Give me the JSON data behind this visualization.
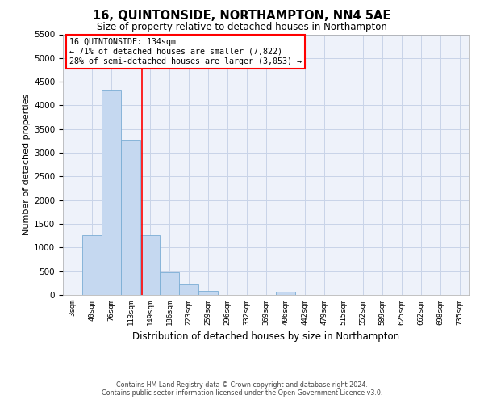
{
  "title": "16, QUINTONSIDE, NORTHAMPTON, NN4 5AE",
  "subtitle": "Size of property relative to detached houses in Northampton",
  "xlabel": "Distribution of detached houses by size in Northampton",
  "ylabel": "Number of detached properties",
  "bar_color": "#c5d8f0",
  "bar_edge_color": "#7aadd4",
  "background_color": "#eef2fa",
  "grid_color": "#c8d4e8",
  "categories": [
    "3sqm",
    "40sqm",
    "76sqm",
    "113sqm",
    "149sqm",
    "186sqm",
    "223sqm",
    "259sqm",
    "296sqm",
    "332sqm",
    "369sqm",
    "406sqm",
    "442sqm",
    "479sqm",
    "515sqm",
    "552sqm",
    "589sqm",
    "625sqm",
    "662sqm",
    "698sqm",
    "735sqm"
  ],
  "values": [
    0,
    1270,
    4320,
    3280,
    1270,
    480,
    230,
    90,
    0,
    0,
    0,
    70,
    0,
    0,
    0,
    0,
    0,
    0,
    0,
    0,
    0
  ],
  "ylim": [
    0,
    5500
  ],
  "yticks": [
    0,
    500,
    1000,
    1500,
    2000,
    2500,
    3000,
    3500,
    4000,
    4500,
    5000,
    5500
  ],
  "annotation_line1": "16 QUINTONSIDE: 134sqm",
  "annotation_line2": "← 71% of detached houses are smaller (7,822)",
  "annotation_line3": "28% of semi-detached houses are larger (3,053) →",
  "footer_line1": "Contains HM Land Registry data © Crown copyright and database right 2024.",
  "footer_line2": "Contains public sector information licensed under the Open Government Licence v3.0.",
  "vline_position": 3.583
}
